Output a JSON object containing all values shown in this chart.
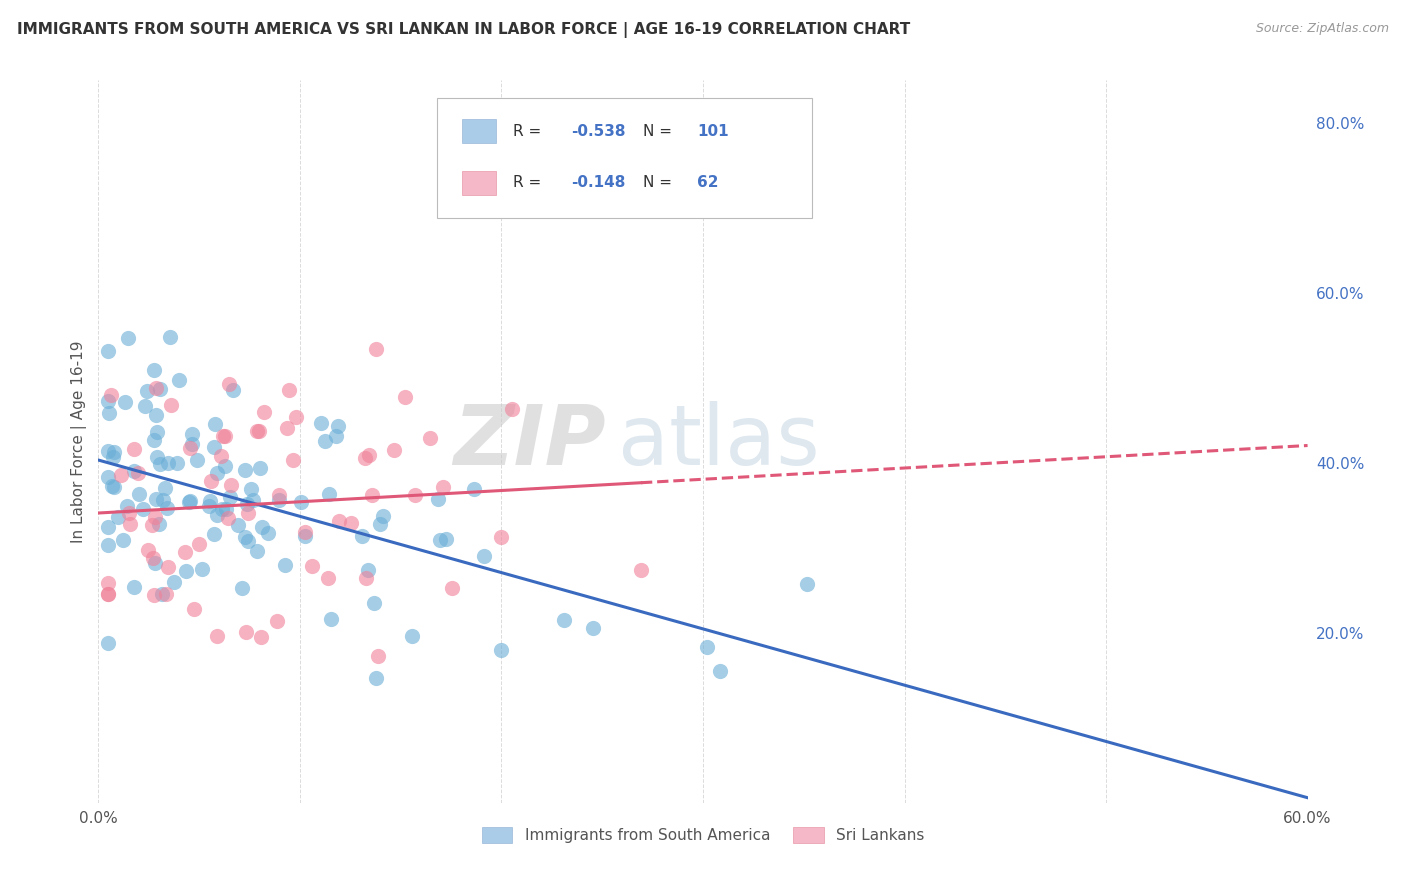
{
  "title": "IMMIGRANTS FROM SOUTH AMERICA VS SRI LANKAN IN LABOR FORCE | AGE 16-19 CORRELATION CHART",
  "source": "Source: ZipAtlas.com",
  "ylabel": "In Labor Force | Age 16-19",
  "x_min": 0.0,
  "x_max": 0.6,
  "y_min": 0.0,
  "y_max": 0.85,
  "y_ticks_right": [
    0.2,
    0.4,
    0.6,
    0.8
  ],
  "y_tick_labels_right": [
    "20.0%",
    "40.0%",
    "60.0%",
    "80.0%"
  ],
  "sa_color": "#6aaed6",
  "sl_color": "#f08098",
  "sa_line_color": "#3a6abf",
  "sl_line_color": "#e05878",
  "background_color": "#ffffff",
  "grid_color": "#cccccc",
  "watermark": "ZIPatlas",
  "sa_R": "-0.538",
  "sa_N": "101",
  "sl_R": "-0.148",
  "sl_N": "62",
  "sa_legend_color": "#aacce8",
  "sl_legend_color": "#f4b8c8",
  "legend_text_color": "#4472c4",
  "sa_seed": 10,
  "sl_seed": 20
}
